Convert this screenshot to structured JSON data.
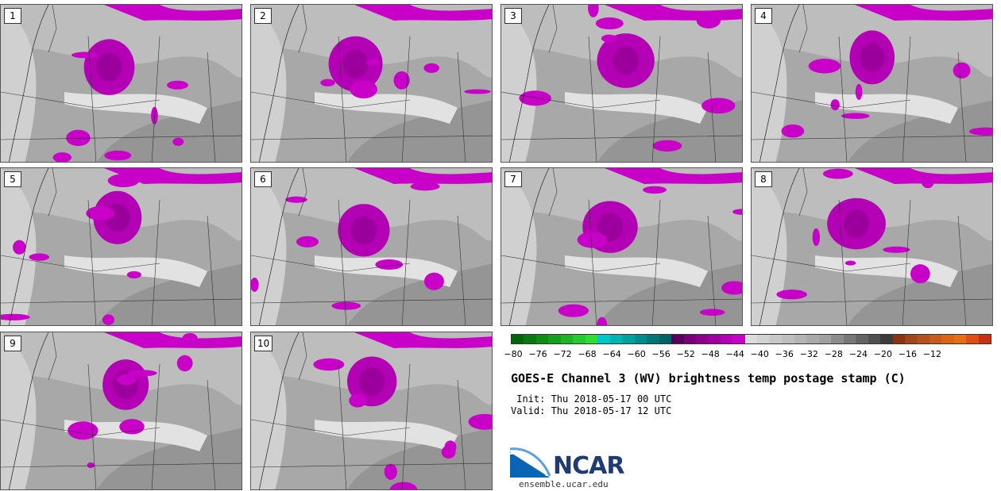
{
  "panels": [
    {
      "label": "1"
    },
    {
      "label": "2"
    },
    {
      "label": "3"
    },
    {
      "label": "4"
    },
    {
      "label": "5"
    },
    {
      "label": "6"
    },
    {
      "label": "7"
    },
    {
      "label": "8"
    },
    {
      "label": "9"
    },
    {
      "label": "10"
    }
  ],
  "colorbar": {
    "colors": [
      "#00640a",
      "#0a780f",
      "#0f8c14",
      "#14a01e",
      "#1eb428",
      "#28c832",
      "#32dc32",
      "#00c8c8",
      "#00b4b4",
      "#00a0a0",
      "#008c8c",
      "#007878",
      "#006464",
      "#5a005a",
      "#780078",
      "#8c008c",
      "#a000a0",
      "#b400b4",
      "#c800c8",
      "#dcdcdc",
      "#d2d2d2",
      "#c8c8c8",
      "#bebebe",
      "#b4b4b4",
      "#aaaaaa",
      "#a0a0a0",
      "#8c8c8c",
      "#787878",
      "#646464",
      "#505050",
      "#3c3c3c",
      "#8c3214",
      "#a04619",
      "#b4501e",
      "#c85a1e",
      "#dc6414",
      "#e66e14",
      "#dc5014",
      "#c83214"
    ],
    "ticks": [
      "−80",
      "−76",
      "−72",
      "−68",
      "−64",
      "−60",
      "−56",
      "−52",
      "−48",
      "−44",
      "−40",
      "−36",
      "−32",
      "−28",
      "−24",
      "−20",
      "−16",
      "−12"
    ]
  },
  "title": "GOES-E Channel 3 (WV) brightness temp postage stamp (C)",
  "init_line": " Init: Thu 2018-05-17 00 UTC",
  "valid_line": "Valid: Thu 2018-05-17 12 UTC",
  "logo_text": "NCAR",
  "site": "ensemble.ucar.edu"
}
